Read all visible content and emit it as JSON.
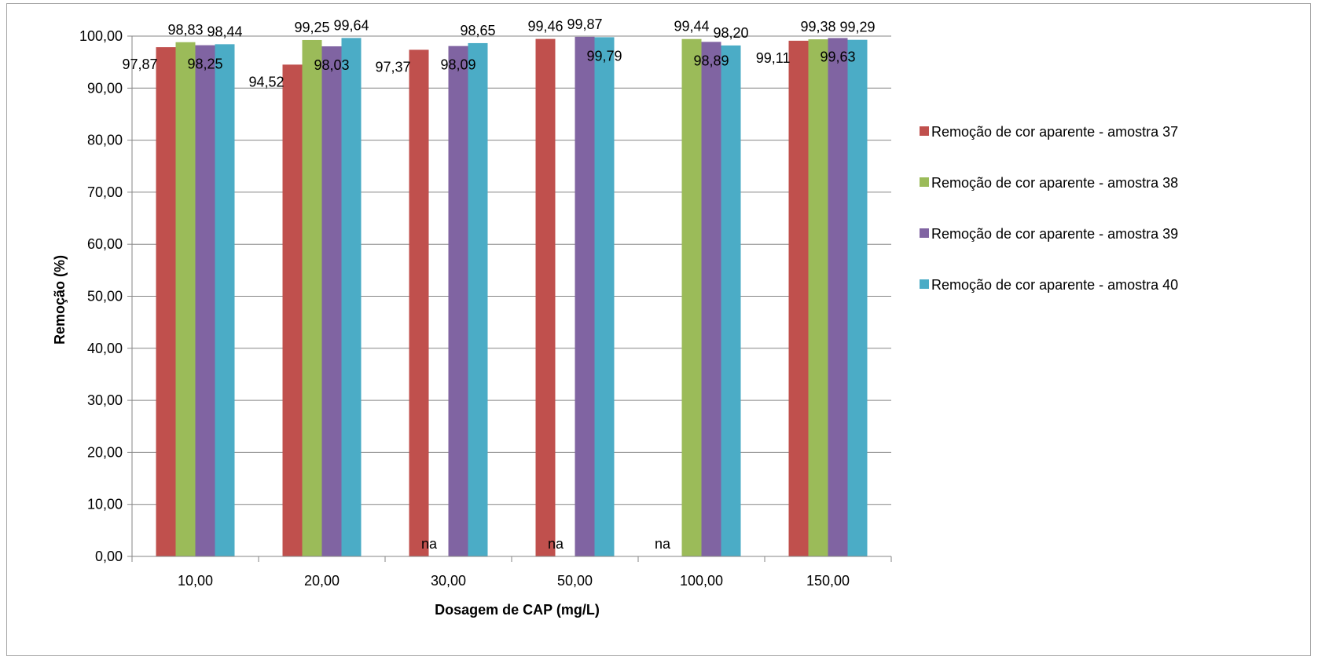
{
  "chart_data": {
    "type": "bar",
    "categories": [
      "10,00",
      "20,00",
      "30,00",
      "50,00",
      "100,00",
      "150,00"
    ],
    "series": [
      {
        "name": "Remoção de cor aparente - amostra 37",
        "color": "#c0504d",
        "values": [
          97.87,
          94.52,
          97.37,
          99.46,
          null,
          99.11
        ],
        "labels": [
          "97,87",
          "94,52",
          "97,37",
          "99,46",
          "na",
          "99,11"
        ]
      },
      {
        "name": "Remoção de cor aparente - amostra 38",
        "color": "#9bbb59",
        "values": [
          98.83,
          99.25,
          null,
          null,
          99.44,
          99.38
        ],
        "labels": [
          "98,83",
          "99,25",
          "na",
          "na",
          "99,44",
          "99,38"
        ]
      },
      {
        "name": "Remoção de cor aparente - amostra 39",
        "color": "#8064a2",
        "values": [
          98.25,
          98.03,
          98.09,
          99.87,
          98.89,
          99.63
        ],
        "labels": [
          "98,25",
          "98,03",
          "98,09",
          "99,87",
          "98,89",
          "99,63"
        ]
      },
      {
        "name": "Remoção de cor aparente - amostra 40",
        "color": "#4bacc6",
        "values": [
          98.44,
          99.64,
          98.65,
          99.79,
          98.2,
          99.29
        ],
        "labels": [
          "98,44",
          "99,64",
          "98,65",
          "99,79",
          "98,20",
          "99,29"
        ]
      }
    ],
    "xlabel": "Dosagem de CAP (mg/L)",
    "ylabel": "Remoção (%)",
    "ylim": [
      0,
      100
    ],
    "yticks": [
      "0,00",
      "10,00",
      "20,00",
      "30,00",
      "40,00",
      "50,00",
      "60,00",
      "70,00",
      "80,00",
      "90,00",
      "100,00"
    ],
    "grid": true,
    "legend_position": "right"
  }
}
